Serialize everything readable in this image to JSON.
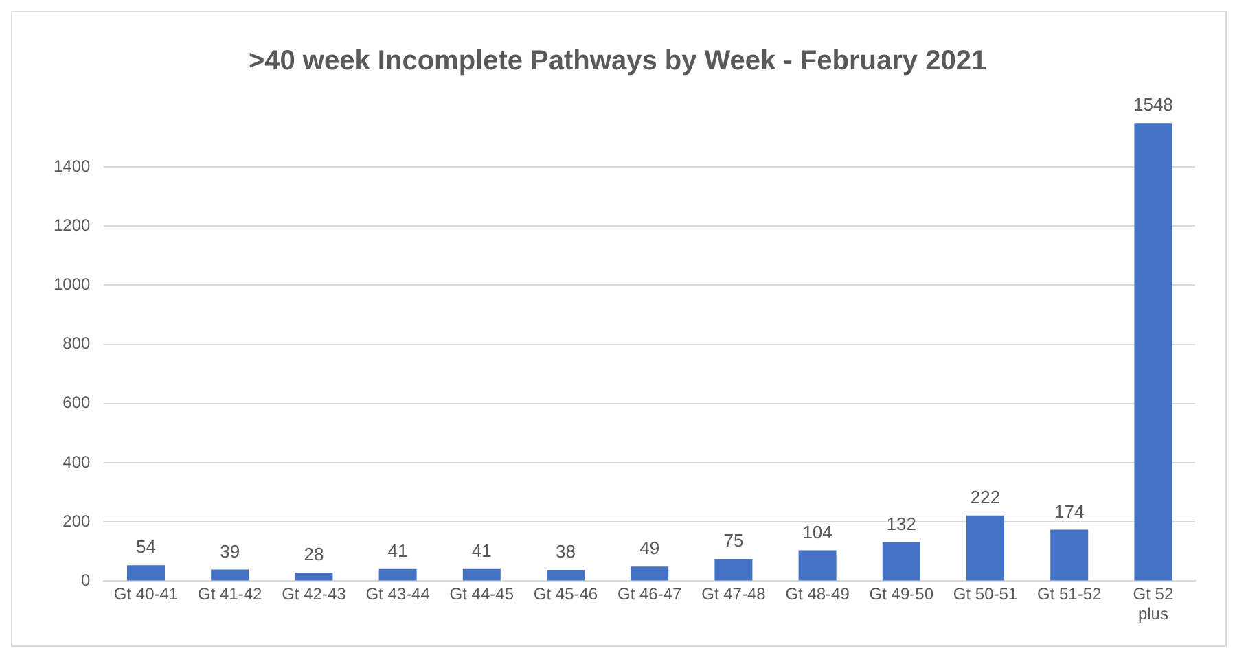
{
  "chart_data": {
    "type": "bar",
    "title": ">40 week Incomplete Pathways by Week - February 2021",
    "categories": [
      "Gt 40-41",
      "Gt 41-42",
      "Gt 42-43",
      "Gt 43-44",
      "Gt 44-45",
      "Gt 45-46",
      "Gt 46-47",
      "Gt 47-48",
      "Gt 48-49",
      "Gt 49-50",
      "Gt 50-51",
      "Gt 51-52",
      "Gt 52 plus"
    ],
    "values": [
      54,
      39,
      28,
      41,
      41,
      38,
      49,
      75,
      104,
      132,
      222,
      174,
      1548
    ],
    "color": "#4472c4",
    "ylim": [
      0,
      1560
    ],
    "yticks": [
      0,
      200,
      400,
      600,
      800,
      1000,
      1200,
      1400
    ],
    "grid": "y",
    "data_labels": true
  }
}
